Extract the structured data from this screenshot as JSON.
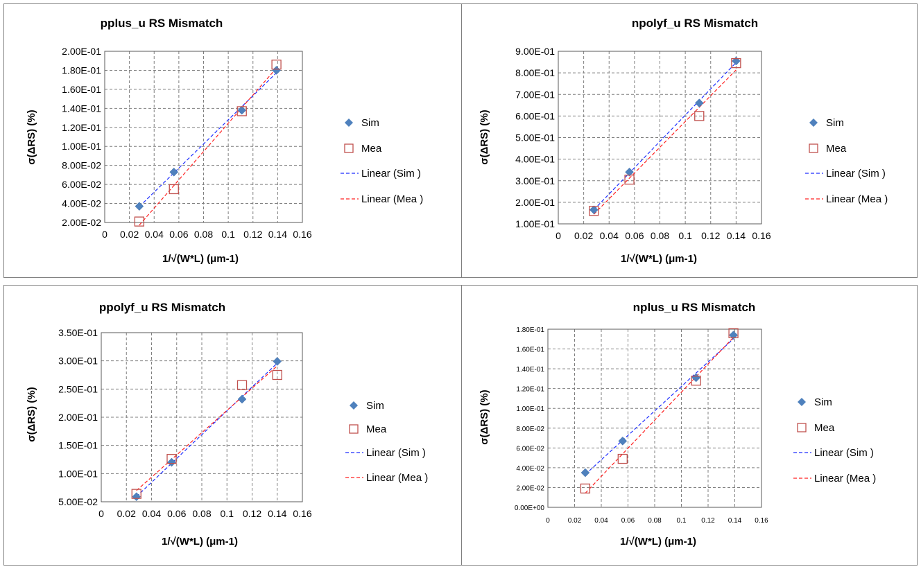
{
  "colors": {
    "sim": "#4f81bd",
    "mea": "#c0504d",
    "sim_line": "#1f2fff",
    "mea_line": "#ff2020",
    "grid": "#7f7f7f",
    "border": "#7f7f7f"
  },
  "chart_data": [
    {
      "type": "scatter",
      "title": "pplus_u  RS  Mismatch",
      "xlabel": "1/√(W*L) (μm-1)",
      "ylabel": "σ(ΔRS) (%)",
      "xlim": [
        0,
        0.16
      ],
      "ylim": [
        0.02,
        0.2
      ],
      "x_ticks": [
        "0",
        "0.02",
        "0.04",
        "0.06",
        "0.08",
        "0.1",
        "0.12",
        "0.14",
        "0.16"
      ],
      "y_ticks": [
        "2.00E-02",
        "4.00E-02",
        "6.00E-02",
        "8.00E-02",
        "1.00E-01",
        "1.20E-01",
        "1.40E-01",
        "1.60E-01",
        "1.80E-01",
        "2.00E-01"
      ],
      "series": [
        {
          "name": "Sim",
          "marker": "diamond",
          "x": [
            0.028,
            0.056,
            0.111,
            0.139
          ],
          "y": [
            0.037,
            0.073,
            0.138,
            0.18
          ]
        },
        {
          "name": "Mea",
          "marker": "square-open",
          "x": [
            0.028,
            0.056,
            0.111,
            0.139
          ],
          "y": [
            0.021,
            0.055,
            0.137,
            0.186
          ]
        }
      ],
      "trendlines": [
        {
          "name": "Linear (Sim )",
          "of": "Sim",
          "style": "dashed"
        },
        {
          "name": "Linear (Mea )",
          "of": "Mea",
          "style": "dashed"
        }
      ]
    },
    {
      "type": "scatter",
      "title": "npolyf_u  RS  Mismatch",
      "xlabel": "1/√(W*L) (μm-1)",
      "ylabel": "σ(ΔRS) (%)",
      "xlim": [
        0,
        0.16
      ],
      "ylim": [
        0.1,
        0.9
      ],
      "x_ticks": [
        "0",
        "0.02",
        "0.04",
        "0.06",
        "0.08",
        "0.1",
        "0.12",
        "0.14",
        "0.16"
      ],
      "y_ticks": [
        "1.00E-01",
        "2.00E-01",
        "3.00E-01",
        "4.00E-01",
        "5.00E-01",
        "6.00E-01",
        "7.00E-01",
        "8.00E-01",
        "9.00E-01"
      ],
      "series": [
        {
          "name": "Sim",
          "marker": "diamond",
          "x": [
            0.028,
            0.056,
            0.111,
            0.14
          ],
          "y": [
            0.165,
            0.34,
            0.66,
            0.855
          ]
        },
        {
          "name": "Mea",
          "marker": "square-open",
          "x": [
            0.028,
            0.056,
            0.111,
            0.14
          ],
          "y": [
            0.16,
            0.305,
            0.6,
            0.845
          ]
        }
      ],
      "trendlines": [
        {
          "name": "Linear (Sim )",
          "of": "Sim",
          "style": "dashed"
        },
        {
          "name": "Linear (Mea )",
          "of": "Mea",
          "style": "dashed"
        }
      ]
    },
    {
      "type": "scatter",
      "title": "ppolyf_u RS  Mismatch",
      "xlabel": "1/√(W*L) (μm-1)",
      "ylabel": "σ(ΔRS) (%)",
      "xlim": [
        0,
        0.16
      ],
      "ylim": [
        0.05,
        0.35
      ],
      "x_ticks": [
        "0",
        "0.02",
        "0.04",
        "0.06",
        "0.08",
        "0.1",
        "0.12",
        "0.14",
        "0.16"
      ],
      "y_ticks": [
        "5.00E-02",
        "1.00E-01",
        "1.50E-01",
        "2.00E-01",
        "2.50E-01",
        "3.00E-01",
        "3.50E-01"
      ],
      "series": [
        {
          "name": "Sim",
          "marker": "diamond",
          "x": [
            0.028,
            0.056,
            0.112,
            0.14
          ],
          "y": [
            0.059,
            0.12,
            0.232,
            0.299
          ]
        },
        {
          "name": "Mea",
          "marker": "square-open",
          "x": [
            0.028,
            0.056,
            0.112,
            0.14
          ],
          "y": [
            0.064,
            0.126,
            0.257,
            0.275
          ]
        }
      ],
      "trendlines": [
        {
          "name": "Linear (Sim )",
          "of": "Sim",
          "style": "dashed"
        },
        {
          "name": "Linear (Mea )",
          "of": "Mea",
          "style": "dashed"
        }
      ]
    },
    {
      "type": "scatter",
      "title": "nplus_u  RS  Mismatch",
      "xlabel": "1/√(W*L) (μm-1)",
      "ylabel": "σ(ΔRS) (%)",
      "xlim": [
        0,
        0.16
      ],
      "ylim": [
        0,
        0.18
      ],
      "small_ticks": true,
      "x_ticks": [
        "0",
        "0.02",
        "0.04",
        "0.06",
        "0.08",
        "0.1",
        "0.12",
        "0.14",
        "0.16"
      ],
      "y_ticks": [
        "0.00E+00",
        "2.00E-02",
        "4.00E-02",
        "6.00E-02",
        "8.00E-02",
        "1.00E-01",
        "1.20E-01",
        "1.40E-01",
        "1.60E-01",
        "1.80E-01"
      ],
      "series": [
        {
          "name": "Sim",
          "marker": "diamond",
          "x": [
            0.028,
            0.056,
            0.111,
            0.139
          ],
          "y": [
            0.035,
            0.067,
            0.131,
            0.174
          ]
        },
        {
          "name": "Mea",
          "marker": "square-open",
          "x": [
            0.028,
            0.056,
            0.111,
            0.139
          ],
          "y": [
            0.019,
            0.049,
            0.128,
            0.176
          ]
        }
      ],
      "trendlines": [
        {
          "name": "Linear (Sim )",
          "of": "Sim",
          "style": "dashed"
        },
        {
          "name": "Linear (Mea )",
          "of": "Mea",
          "style": "dashed"
        }
      ]
    }
  ]
}
